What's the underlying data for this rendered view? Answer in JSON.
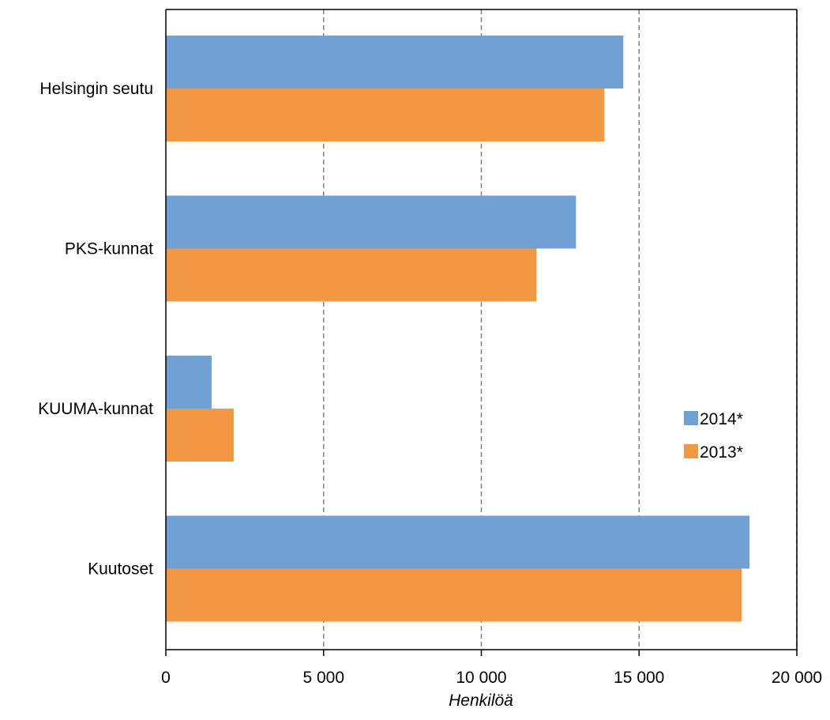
{
  "chart_data": {
    "type": "bar",
    "orientation": "horizontal",
    "categories": [
      "Helsingin seutu",
      "PKS-kunnat",
      "KUUMA-kunnat",
      "Kuutoset"
    ],
    "series": [
      {
        "name": "2014*",
        "color": "#70a0d4",
        "values": [
          14500,
          13000,
          1450,
          18500
        ]
      },
      {
        "name": "2013*",
        "color": "#f29742",
        "values": [
          13900,
          11750,
          2150,
          18250
        ]
      }
    ],
    "xlim": [
      0,
      20000
    ],
    "xticks": [
      0,
      5000,
      10000,
      15000,
      20000
    ],
    "xtick_labels": [
      "0",
      "5 000",
      "10 000",
      "15 000",
      "20 000"
    ],
    "xlabel": "Henkilöä",
    "grid": "vertical-dashed",
    "legend_position": "right"
  }
}
